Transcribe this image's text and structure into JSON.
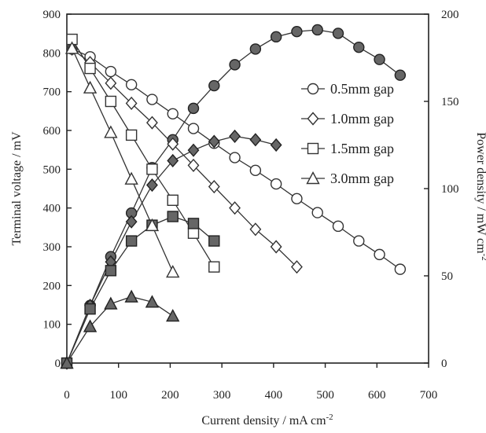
{
  "chart_data": {
    "type": "line",
    "x_axis": {
      "label_main": "Current density / mA cm",
      "label_sup": "-2",
      "range": [
        0,
        700
      ],
      "ticks": [
        "0",
        "100",
        "200",
        "300",
        "400",
        "500",
        "600",
        "700"
      ]
    },
    "y_left": {
      "label": "Terminal voltage / mV",
      "range": [
        0,
        900
      ],
      "ticks": [
        "0",
        "100",
        "200",
        "300",
        "400",
        "500",
        "600",
        "700",
        "800",
        "900"
      ]
    },
    "y_right": {
      "label_main": "Power density / mW cm",
      "label_sup": "-2",
      "range": [
        0,
        200
      ],
      "ticks": [
        "0",
        "50",
        "100",
        "150",
        "200"
      ]
    },
    "legend": {
      "placement": "top-right",
      "items": [
        "0.5mm gap",
        "1.0mm gap",
        "1.5mm gap",
        "3.0mm gap"
      ]
    },
    "series": [
      {
        "name": "0.5mm gap",
        "marker": "circle",
        "voltage": [
          [
            10,
            810
          ],
          [
            45,
            790
          ],
          [
            85,
            752
          ],
          [
            125,
            718
          ],
          [
            165,
            680
          ],
          [
            205,
            643
          ],
          [
            245,
            605
          ],
          [
            285,
            567
          ],
          [
            325,
            530
          ],
          [
            365,
            497
          ],
          [
            405,
            462
          ],
          [
            445,
            424
          ],
          [
            485,
            388
          ],
          [
            525,
            353
          ],
          [
            565,
            315
          ],
          [
            605,
            280
          ],
          [
            645,
            242
          ]
        ],
        "power": [
          [
            0,
            0
          ],
          [
            45,
            33
          ],
          [
            85,
            61
          ],
          [
            125,
            86
          ],
          [
            165,
            112
          ],
          [
            205,
            128
          ],
          [
            245,
            146
          ],
          [
            285,
            159
          ],
          [
            325,
            171
          ],
          [
            365,
            180
          ],
          [
            405,
            187
          ],
          [
            445,
            190
          ],
          [
            485,
            191
          ],
          [
            525,
            189
          ],
          [
            565,
            181
          ],
          [
            605,
            174
          ],
          [
            645,
            165
          ]
        ]
      },
      {
        "name": "1.0mm gap",
        "marker": "diamond",
        "voltage": [
          [
            10,
            810
          ],
          [
            45,
            775
          ],
          [
            85,
            722
          ],
          [
            125,
            670
          ],
          [
            165,
            620
          ],
          [
            205,
            565
          ],
          [
            245,
            510
          ],
          [
            285,
            455
          ],
          [
            325,
            400
          ],
          [
            365,
            345
          ],
          [
            405,
            300
          ],
          [
            445,
            248
          ]
        ],
        "power": [
          [
            0,
            0
          ],
          [
            45,
            33
          ],
          [
            85,
            58
          ],
          [
            125,
            81
          ],
          [
            165,
            102
          ],
          [
            205,
            116
          ],
          [
            245,
            122
          ],
          [
            285,
            127
          ],
          [
            325,
            130
          ],
          [
            365,
            128
          ],
          [
            405,
            125
          ]
        ]
      },
      {
        "name": "1.5mm gap",
        "marker": "square",
        "voltage": [
          [
            10,
            835
          ],
          [
            45,
            760
          ],
          [
            85,
            675
          ],
          [
            125,
            588
          ],
          [
            165,
            500
          ],
          [
            205,
            420
          ],
          [
            245,
            335
          ],
          [
            285,
            248
          ]
        ],
        "power": [
          [
            0,
            0
          ],
          [
            45,
            31
          ],
          [
            85,
            53
          ],
          [
            125,
            70
          ],
          [
            165,
            79
          ],
          [
            205,
            84
          ],
          [
            245,
            80
          ],
          [
            285,
            70
          ]
        ]
      },
      {
        "name": "3.0mm gap",
        "marker": "triangle",
        "voltage": [
          [
            10,
            812
          ],
          [
            45,
            710
          ],
          [
            85,
            595
          ],
          [
            125,
            475
          ],
          [
            165,
            355
          ],
          [
            205,
            235
          ]
        ],
        "power": [
          [
            0,
            0
          ],
          [
            45,
            21
          ],
          [
            85,
            34
          ],
          [
            125,
            38
          ],
          [
            165,
            35
          ],
          [
            205,
            27
          ]
        ]
      }
    ]
  }
}
